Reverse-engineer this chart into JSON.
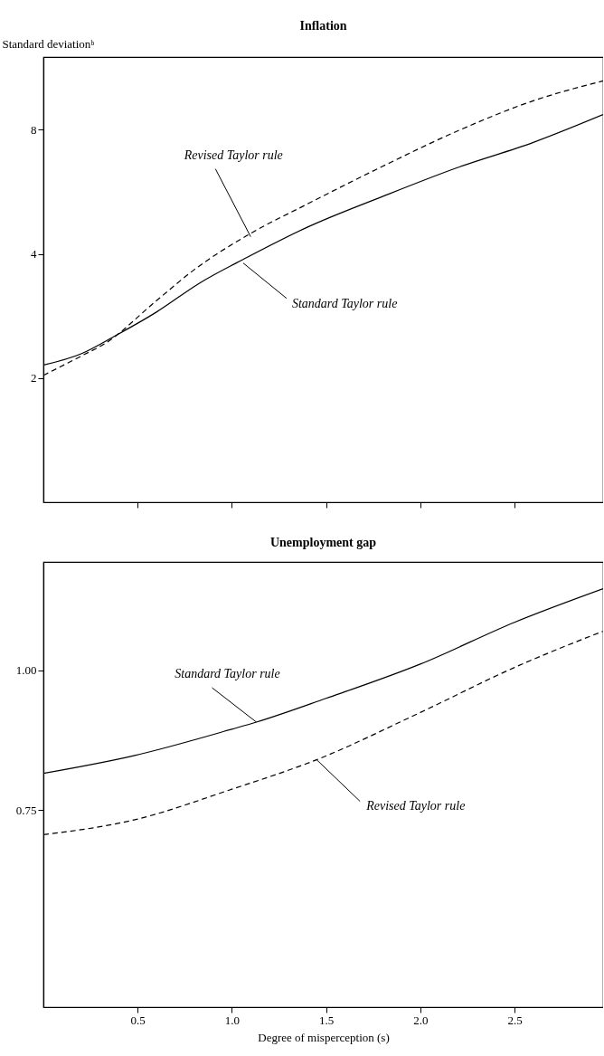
{
  "chart_data": [
    {
      "type": "line",
      "title": "Inflation",
      "ylabel": "Standard deviationᵇ",
      "log": "y",
      "grid": false,
      "legend": false,
      "marker": "none",
      "tick_labels": "y",
      "xlim": [
        0,
        2.97
      ],
      "xticks": [
        0.5,
        1,
        1.5,
        2,
        2.5
      ],
      "ylim": [
        1,
        12
      ],
      "yticks": [
        2,
        4,
        8
      ],
      "series": [
        {
          "color": "#000000",
          "line_style": "solid",
          "x": [
            0,
            0.2,
            0.38,
            0.6,
            0.83,
            1.08,
            1.4,
            1.8,
            2.2,
            2.6,
            2.97
          ],
          "values": [
            2.15,
            2.29,
            2.53,
            2.89,
            3.4,
            3.92,
            4.64,
            5.51,
            6.48,
            7.45,
            8.7
          ]
        },
        {
          "color": "#000000",
          "line_style": "dashed",
          "x": [
            0,
            0.2,
            0.33,
            0.6,
            0.8,
            1.08,
            1.4,
            1.8,
            2.2,
            2.6,
            2.97
          ],
          "values": [
            2.03,
            2.26,
            2.43,
            3.08,
            3.66,
            4.43,
            5.28,
            6.52,
            7.95,
            9.4,
            10.5
          ]
        }
      ],
      "annotations": [
        {
          "text": "Revised Taylor rule",
          "x": 1.1,
          "y": 4.4
        },
        {
          "text": "Standard Taylor rule",
          "x": 1.06,
          "y": 3.8
        }
      ]
    },
    {
      "type": "line",
      "title": "Unemployment gap",
      "xlabel": "Degree of misperception (s)",
      "log": "y",
      "grid": false,
      "legend": false,
      "marker": "none",
      "xlim": [
        0,
        2.97
      ],
      "xticks": [
        0.5,
        {
          "value": 1,
          "label": "1.0"
        },
        1.5,
        {
          "value": 2,
          "label": "2.0"
        },
        2.5
      ],
      "ylim": [
        0.5,
        1.25
      ],
      "yticks": [
        0.75,
        {
          "value": 1,
          "label": "1.00"
        }
      ],
      "series": [
        {
          "color": "#000000",
          "line_style": "solid",
          "x": [
            0,
            0.48,
            1.0,
            1.13,
            1.5,
            2.0,
            2.5,
            2.97
          ],
          "values": [
            0.809,
            0.839,
            0.886,
            0.899,
            0.944,
            1.013,
            1.104,
            1.183
          ]
        },
        {
          "color": "#000000",
          "line_style": "dashed",
          "x": [
            0,
            0.48,
            1.0,
            1.45,
            2.0,
            2.5,
            2.97
          ],
          "values": [
            0.713,
            0.735,
            0.783,
            0.832,
            0.917,
            1.006,
            1.084
          ]
        }
      ],
      "annotations": [
        {
          "text": "Standard Taylor rule",
          "x": 1.13,
          "y": 0.899
        },
        {
          "text": "Revised Taylor rule",
          "x": 1.45,
          "y": 0.832
        }
      ]
    }
  ]
}
